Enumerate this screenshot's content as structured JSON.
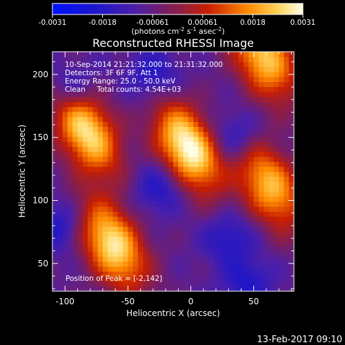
{
  "chart_data": {
    "type": "heatmap",
    "title": "Reconstructed RHESSI Image",
    "xlabel": "Heliocentric X (arcsec)",
    "ylabel": "Heliocentric Y (arcsec)",
    "xlim": [
      -110,
      82
    ],
    "ylim": [
      28,
      218
    ],
    "xticks": [
      -100,
      -50,
      0,
      50
    ],
    "yticks": [
      50,
      100,
      150,
      200
    ],
    "colorbar": {
      "ticks": [
        "-0.0031",
        "-0.0018",
        "-0.00061",
        "0.00061",
        "0.0018",
        "0.0031"
      ],
      "range": [
        -0.0031,
        0.0031
      ],
      "unit_label": "(photons cm",
      "unit_exp1": "-2",
      "unit_mid": " s",
      "unit_exp2": "-1",
      "unit_mid2": " asec",
      "unit_exp3": "-2",
      "unit_end": ")"
    },
    "annotations": [
      "10-Sep-2014 21:21:32.000 to 21:31:32.000",
      "Detectors: 3F 6F 9F, Att 1",
      "Energy Range: 25.0 - 50.0 keV",
      "Clean     Total counts: 4.54E+03"
    ],
    "peak_label": "Position of Peak = [-2,142]",
    "peak": [
      -2,
      142
    ],
    "sources": [
      {
        "x": -2,
        "y": 142,
        "value": 0.0031
      },
      {
        "x": -83,
        "y": 155,
        "value": 0.0026
      },
      {
        "x": -62,
        "y": 65,
        "value": 0.0027
      },
      {
        "x": 63,
        "y": 112,
        "value": 0.0021
      },
      {
        "x": 58,
        "y": 214,
        "value": 0.0023
      }
    ],
    "footer": "13-Feb-2017 09:10"
  }
}
